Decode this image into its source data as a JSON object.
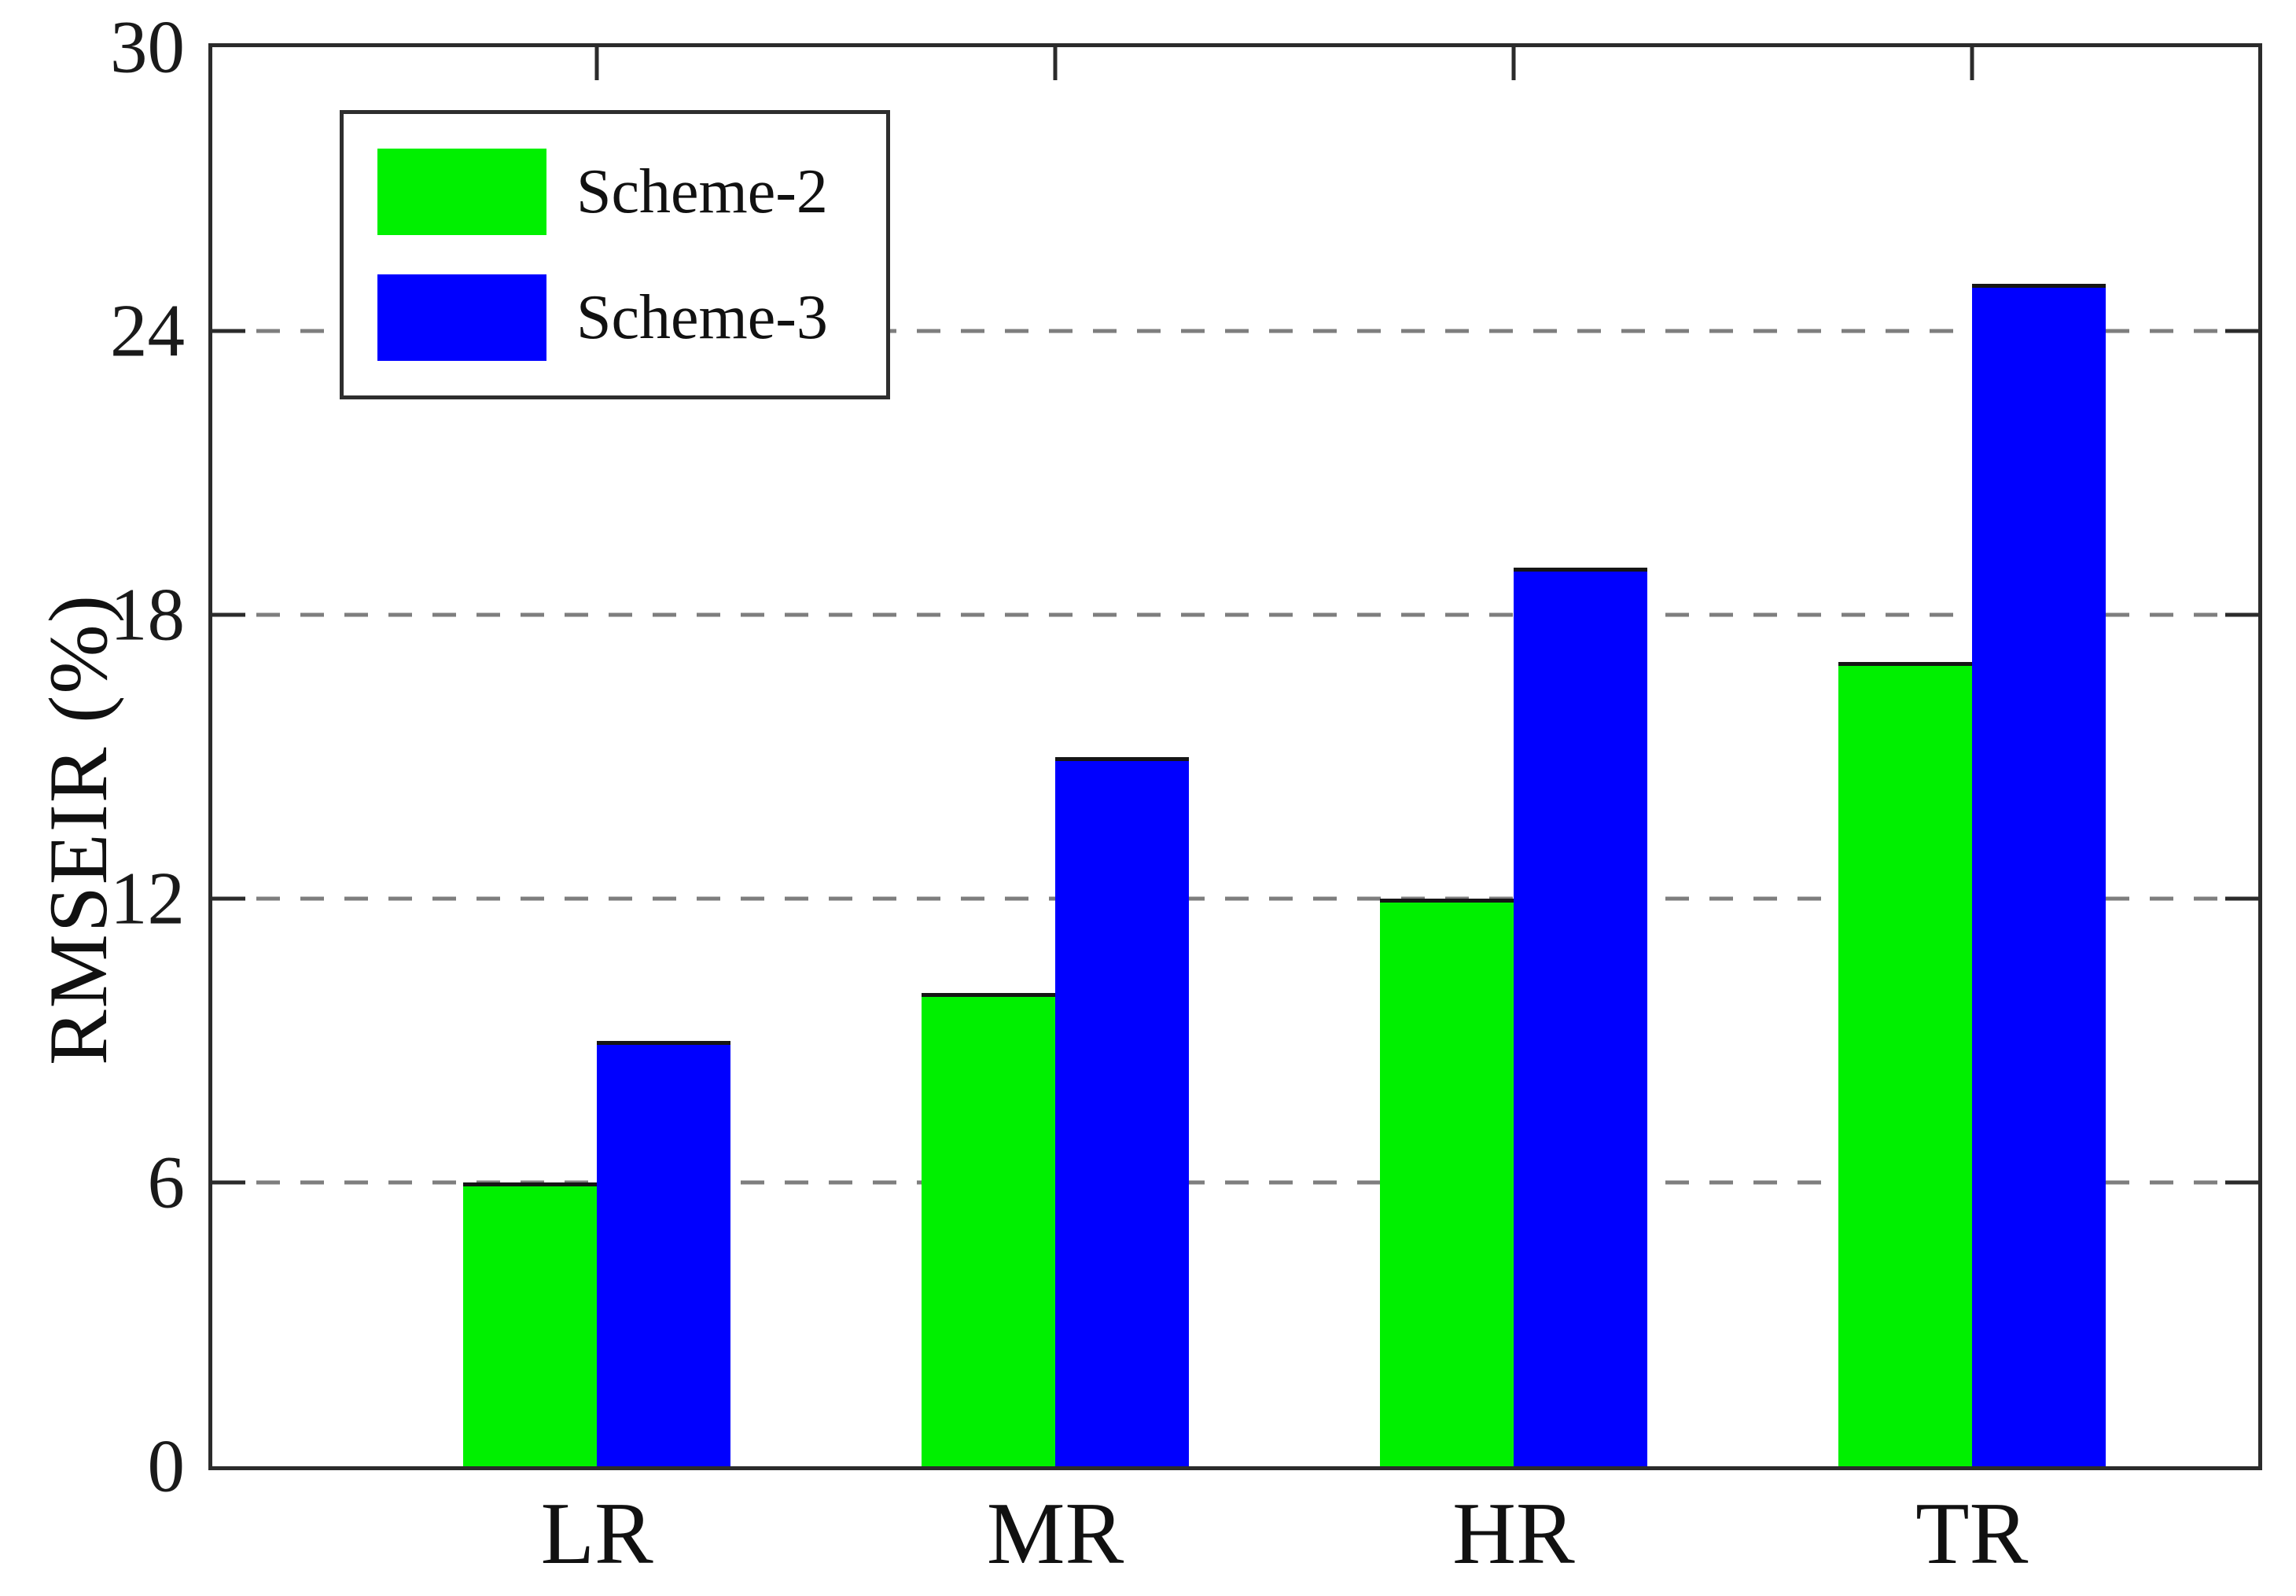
{
  "chart_data": {
    "type": "bar",
    "title": "",
    "xlabel": "",
    "ylabel": "RMSEIR  (%)",
    "categories": [
      "LR",
      "MR",
      "HR",
      "TR"
    ],
    "series": [
      {
        "name": "Scheme-2",
        "color": "#00f000",
        "values": [
          6,
          10,
          12,
          17
        ]
      },
      {
        "name": "Scheme-3",
        "color": "#0000ff",
        "values": [
          9,
          15,
          19,
          25
        ]
      }
    ],
    "ylim": [
      0,
      30
    ],
    "yticks": [
      0,
      6,
      12,
      18,
      24,
      30
    ],
    "grid": "horizontal dashed lines at 6, 12, 18, 24",
    "grid_color": "#7e7e7e",
    "legend_position": "top-left inside plot",
    "legend_entries": [
      "Scheme-2",
      "Scheme-3"
    ]
  },
  "colors": {
    "background": "#ffffff",
    "axis_frame": "#2b2b2b",
    "bar_edge": "#151515",
    "text": "#111111"
  }
}
